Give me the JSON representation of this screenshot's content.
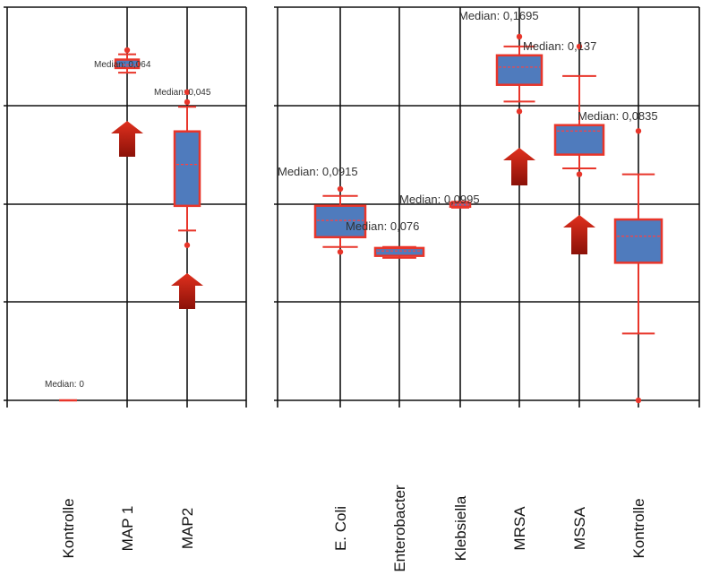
{
  "chart_data": [
    {
      "type": "box",
      "title": "",
      "xlabel": "",
      "ylabel": "",
      "categories": [
        "Kontrolle",
        "MAP 1",
        "MAP2"
      ],
      "ylim": [
        0,
        0.075
      ],
      "grid": true,
      "boxes": [
        {
          "category": "Kontrolle",
          "median": 0,
          "q1": 0,
          "q3": 0,
          "whisker_low": 0,
          "whisker_high": 0,
          "outliers": [],
          "label": "Median: 0"
        },
        {
          "category": "MAP 1",
          "median": 0.064,
          "q1": 0.0634,
          "q3": 0.065,
          "whisker_low": 0.0625,
          "whisker_high": 0.066,
          "outliers": [
            0.0668
          ],
          "label": "Median: 0,064"
        },
        {
          "category": "MAP2",
          "median": 0.045,
          "q1": 0.0371,
          "q3": 0.0513,
          "whisker_low": 0.0324,
          "whisker_high": 0.056,
          "outliers": [
            0.0296,
            0.0569,
            0.0588
          ],
          "label": "Median: 0,045"
        }
      ],
      "arrows": [
        "MAP 1",
        "MAP2"
      ]
    },
    {
      "type": "box",
      "title": "",
      "xlabel": "",
      "ylabel": "",
      "categories": [
        "E. Coli",
        "Enterobacter",
        "Klebsiella",
        "MRSA",
        "MSSA",
        "Kontrolle"
      ],
      "ylim": [
        0,
        0.2
      ],
      "grid": true,
      "boxes": [
        {
          "category": "E. Coli",
          "median": 0.0915,
          "q1": 0.083,
          "q3": 0.099,
          "whisker_low": 0.078,
          "whisker_high": 0.104,
          "outliers": [
            0.0755,
            0.1075
          ],
          "label": "Median: 0,0915"
        },
        {
          "category": "Enterobacter",
          "median": 0.076,
          "q1": 0.0735,
          "q3": 0.0775,
          "whisker_low": 0.0725,
          "whisker_high": 0.078,
          "outliers": [],
          "label": "Median: 0,076"
        },
        {
          "category": "Klebsiella",
          "median": 0.0995,
          "q1": 0.0985,
          "q3": 0.1005,
          "whisker_low": 0.098,
          "whisker_high": 0.101,
          "outliers": [],
          "label": "Median: 0,0995"
        },
        {
          "category": "MRSA",
          "median": 0.1695,
          "q1": 0.1605,
          "q3": 0.1755,
          "whisker_low": 0.152,
          "whisker_high": 0.18,
          "outliers": [
            0.147,
            0.185
          ],
          "label": "Median: 0,1695"
        },
        {
          "category": "MSSA",
          "median": 0.137,
          "q1": 0.125,
          "q3": 0.14,
          "whisker_low": 0.118,
          "whisker_high": 0.165,
          "outliers": [
            0.115,
            0.18
          ],
          "label": "Median: 0,137"
        },
        {
          "category": "Kontrolle",
          "median": 0.0835,
          "q1": 0.07,
          "q3": 0.092,
          "whisker_low": 0.034,
          "whisker_high": 0.115,
          "outliers": [
            0.0,
            0.137
          ],
          "label": "Median: 0,0835"
        }
      ],
      "arrows": [
        "MRSA",
        "MSSA"
      ]
    }
  ],
  "colors": {
    "box_fill": "#4f7bbd",
    "box_stroke": "#e8352a",
    "whisker": "#e8352a",
    "median_line": "#ff4040",
    "grid": "#111111",
    "label_text": "#333333",
    "arrow": "#e0301e",
    "arrow_dark": "#8b1108"
  }
}
